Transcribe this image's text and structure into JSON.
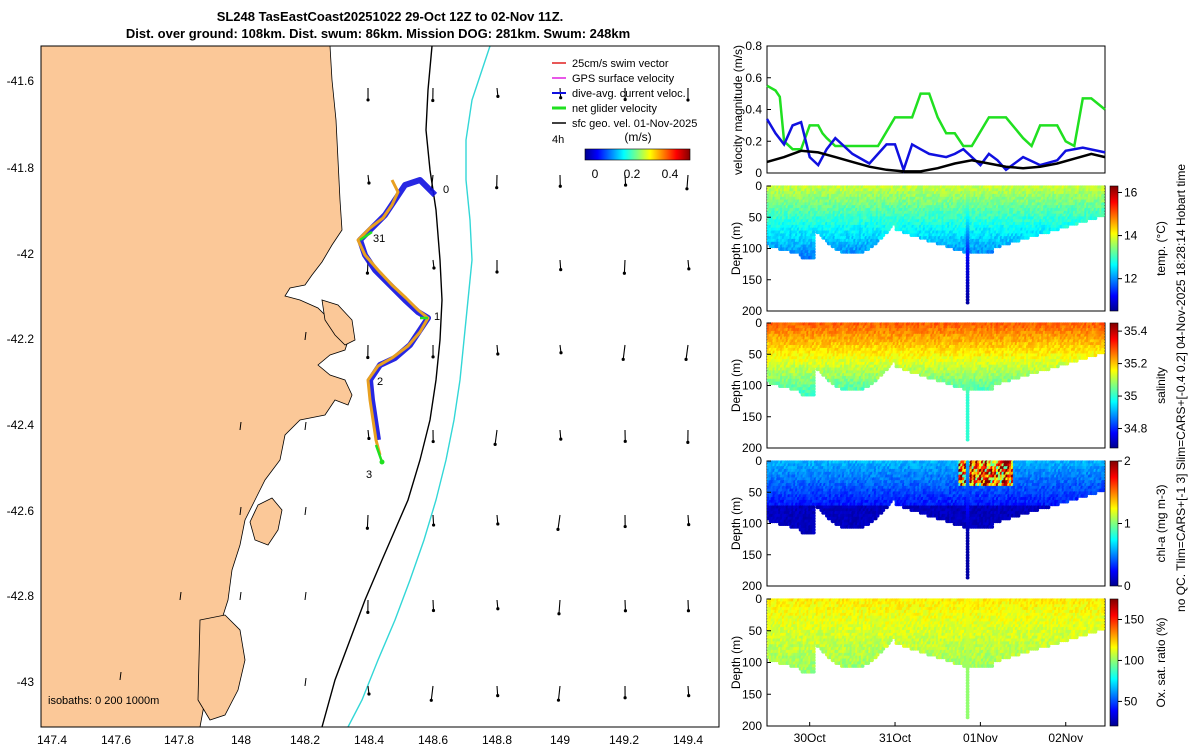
{
  "title": {
    "line1": "SL248 TasEastCoast20251022 29-Oct 12Z to 02-Nov 11Z.",
    "line2": "Dist. over ground: 108km. Dist. swum: 86km. Mission DOG: 281km. Swum: 248km"
  },
  "side_note": "no QC. Tlim=CARS+[-1 3] Slim=CARS+[-0.4 0.2] 04-Nov-2025 18:28:14 Hobart time",
  "map": {
    "lon_ticks": [
      "147.4",
      "147.6",
      "147.8",
      "148",
      "148.2",
      "148.4",
      "148.6",
      "148.8",
      "149",
      "149.2",
      "149.4"
    ],
    "lat_ticks": [
      "-41.6",
      "-41.8",
      "-42",
      "-42.2",
      "-42.4",
      "-42.6",
      "-42.8",
      "-43"
    ],
    "isobaths_label": "isobaths: 0   200 1000m",
    "legend": [
      {
        "label": "25cm/s swim vector",
        "color": "#e02020"
      },
      {
        "label": "GPS surface velocity",
        "color": "#e020e0"
      },
      {
        "label": "dive-avg. current veloc.",
        "color": "#1010e0"
      },
      {
        "label": "net glider velocity",
        "color": "#20e020"
      },
      {
        "label": "sfc geo. vel. 01-Nov-2025",
        "color": "#000000"
      }
    ],
    "vector_scale_label": "4h",
    "colorbar": {
      "title": "(m/s)",
      "ticks": [
        "0",
        "0.2",
        "0.4"
      ]
    },
    "day_labels": [
      "0",
      "31",
      "1",
      "2",
      "3"
    ]
  },
  "chart_data": [
    {
      "type": "line",
      "title": "",
      "ylabel": "velocity magnitude (m/s)",
      "ylim": [
        0,
        0.8
      ],
      "yticks": [
        "0",
        "0.2",
        "0.4",
        "0.6",
        "0.8"
      ],
      "x_day_range": [
        29.5,
        33.46
      ],
      "series": [
        {
          "name": "net glider velocity",
          "color": "#20e020",
          "x": [
            29.5,
            29.6,
            29.65,
            29.7,
            29.8,
            29.9,
            30.0,
            30.1,
            30.15,
            30.2,
            30.3,
            30.5,
            30.7,
            30.8,
            31.0,
            31.2,
            31.3,
            31.4,
            31.5,
            31.6,
            31.7,
            31.8,
            31.9,
            32.1,
            32.3,
            32.5,
            32.6,
            32.7,
            32.9,
            33.0,
            33.1,
            33.2,
            33.3,
            33.46
          ],
          "values": [
            0.55,
            0.52,
            0.48,
            0.2,
            0.15,
            0.15,
            0.3,
            0.3,
            0.25,
            0.22,
            0.17,
            0.17,
            0.17,
            0.17,
            0.35,
            0.35,
            0.5,
            0.5,
            0.35,
            0.25,
            0.25,
            0.17,
            0.17,
            0.35,
            0.35,
            0.22,
            0.17,
            0.3,
            0.3,
            0.2,
            0.17,
            0.47,
            0.47,
            0.4
          ]
        },
        {
          "name": "dive-avg. current veloc.",
          "color": "#1010e0",
          "x": [
            29.5,
            29.6,
            29.7,
            29.8,
            29.9,
            30.0,
            30.1,
            30.2,
            30.3,
            30.5,
            30.7,
            30.9,
            31.0,
            31.1,
            31.2,
            31.3,
            31.4,
            31.6,
            31.7,
            31.8,
            31.9,
            32.0,
            32.1,
            32.2,
            32.3,
            32.5,
            32.7,
            32.9,
            33.0,
            33.2,
            33.46
          ],
          "values": [
            0.34,
            0.25,
            0.18,
            0.3,
            0.32,
            0.1,
            0.05,
            0.15,
            0.22,
            0.12,
            0.06,
            0.18,
            0.18,
            0.02,
            0.18,
            0.15,
            0.12,
            0.1,
            0.12,
            0.15,
            0.1,
            0.05,
            0.12,
            0.08,
            0.02,
            0.1,
            0.05,
            0.08,
            0.14,
            0.16,
            0.13
          ]
        },
        {
          "name": "sfc geo. vel.",
          "color": "#000000",
          "x": [
            29.5,
            29.7,
            29.9,
            30.1,
            30.3,
            30.5,
            30.7,
            30.9,
            31.1,
            31.3,
            31.5,
            31.7,
            31.9,
            32.1,
            32.3,
            32.5,
            32.7,
            32.9,
            33.1,
            33.3,
            33.46
          ],
          "values": [
            0.07,
            0.1,
            0.14,
            0.13,
            0.1,
            0.07,
            0.04,
            0.02,
            0.01,
            0.01,
            0.03,
            0.06,
            0.08,
            0.06,
            0.04,
            0.03,
            0.04,
            0.06,
            0.09,
            0.12,
            0.1
          ]
        }
      ]
    },
    {
      "type": "scatter",
      "ylabel": "Depth (m)",
      "ylim": [
        0,
        200
      ],
      "yticks": [
        "0",
        "50",
        "100",
        "150",
        "200"
      ],
      "colorbar_label": "temp. (°C)",
      "colorbar_ticks": [
        "12",
        "14",
        "16"
      ],
      "clim": [
        10.5,
        16.3
      ],
      "base_value": 13.3,
      "surface_value": 13.8,
      "deep_value": 11.8
    },
    {
      "type": "scatter",
      "ylabel": "Depth (m)",
      "ylim": [
        0,
        200
      ],
      "yticks": [
        "0",
        "50",
        "100",
        "150",
        "200"
      ],
      "colorbar_label": "salinity",
      "colorbar_ticks": [
        "34.8",
        "35",
        "35.2",
        "35.4"
      ],
      "clim": [
        34.68,
        35.45
      ],
      "base_value": 35.25,
      "surface_value": 35.28,
      "deep_value": 35.0
    },
    {
      "type": "scatter",
      "ylabel": "Depth (m)",
      "ylim": [
        0,
        200
      ],
      "yticks": [
        "0",
        "50",
        "100",
        "150",
        "200"
      ],
      "colorbar_label": "chl-a (mg m-3)",
      "colorbar_ticks": [
        "0",
        "1",
        "2"
      ],
      "clim": [
        0,
        2
      ],
      "base_value": 0.25,
      "surface_value": 0.6,
      "deep_value": 0.05
    },
    {
      "type": "scatter",
      "ylabel": "Depth (m)",
      "ylim": [
        0,
        200
      ],
      "yticks": [
        "0",
        "50",
        "100",
        "150",
        "200"
      ],
      "colorbar_label": "Ox. sat. ratio (%)",
      "colorbar_ticks": [
        "50",
        "100",
        "150"
      ],
      "clim": [
        20,
        175
      ],
      "base_value": 112,
      "surface_value": 118,
      "deep_value": 100
    }
  ],
  "time_axis": {
    "ticks": [
      "30Oct",
      "31Oct",
      "01Nov",
      "02Nov"
    ],
    "tick_days": [
      30,
      31,
      32,
      33
    ]
  }
}
